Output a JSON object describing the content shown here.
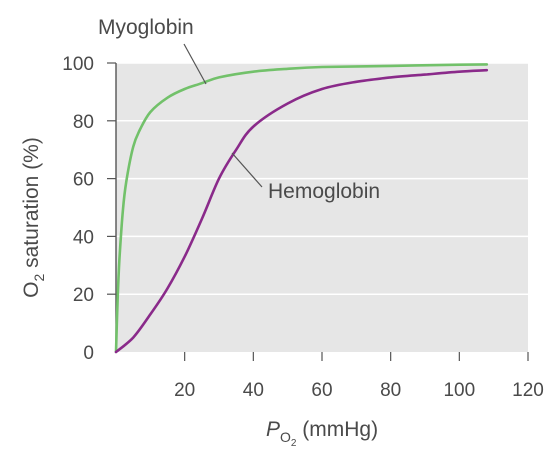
{
  "chart_data": {
    "type": "line",
    "xlabel": {
      "italic": "P",
      "sub": "O",
      "subsub": "2",
      "rest": " (mmHg)"
    },
    "ylabel": {
      "pre": "O",
      "sub": "2",
      "rest": " saturation (%)"
    },
    "xlim": [
      0,
      120
    ],
    "ylim": [
      0,
      100
    ],
    "x_ticks": [
      "20",
      "40",
      "60",
      "80",
      "100",
      "120"
    ],
    "x_tick_values": [
      20,
      40,
      60,
      80,
      100,
      120
    ],
    "y_ticks": [
      "0",
      "20",
      "40",
      "60",
      "80",
      "100"
    ],
    "y_tick_values": [
      0,
      20,
      40,
      60,
      80,
      100
    ],
    "grid": true,
    "series": [
      {
        "name": "Myoglobin",
        "color": "#72c16a",
        "x": [
          0.5,
          1,
          2,
          3,
          5,
          7,
          10,
          15,
          20,
          25,
          30,
          40,
          50,
          60,
          80,
          100,
          108
        ],
        "y": [
          19,
          32,
          49,
          59,
          71,
          77,
          83,
          88,
          91,
          93,
          95,
          97,
          98,
          98.6,
          99,
          99.4,
          99.5
        ]
      },
      {
        "name": "Hemoglobin",
        "color": "#8a2a8a",
        "x": [
          0,
          5,
          10,
          15,
          20,
          25,
          30,
          35,
          40,
          50,
          60,
          70,
          80,
          90,
          100,
          108
        ],
        "y": [
          0,
          5,
          13,
          22,
          33,
          46,
          60,
          70,
          78,
          86,
          91,
          93.5,
          95,
          96,
          97,
          97.5
        ]
      }
    ]
  }
}
